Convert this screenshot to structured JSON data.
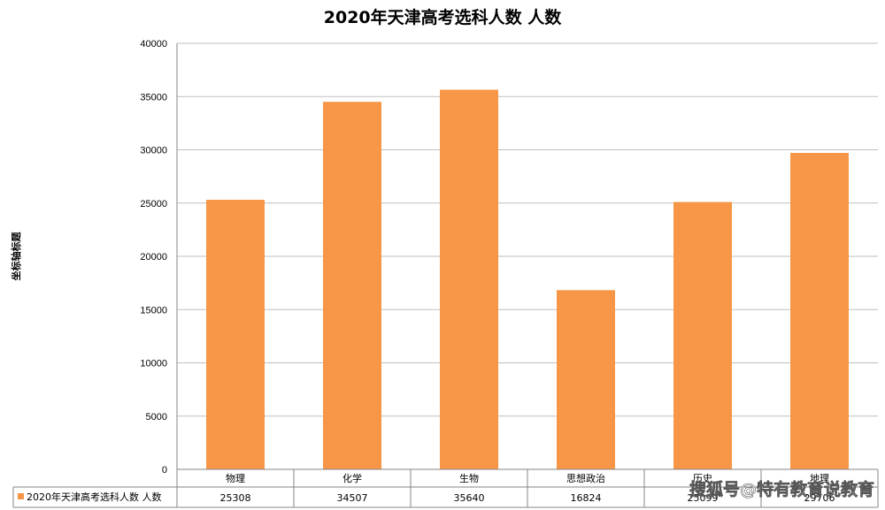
{
  "chart_data": {
    "type": "bar",
    "title": "2020年天津高考选科人数 人数",
    "ylabel": "坐标轴标题",
    "xlabel": "",
    "ylim": [
      0,
      40000
    ],
    "yticks": [
      0,
      5000,
      10000,
      15000,
      20000,
      25000,
      30000,
      35000,
      40000
    ],
    "categories": [
      "物理",
      "化学",
      "生物",
      "思想政治",
      "历史",
      "地理"
    ],
    "series": [
      {
        "name": "2020年天津高考选科人数 人数",
        "values": [
          25308,
          34507,
          35640,
          16824,
          25099,
          29706
        ],
        "color": "#F79646"
      }
    ],
    "table_values": [
      "25308",
      "34507",
      "35640",
      "16824",
      "25099",
      "29706"
    ],
    "grid": true,
    "legend": "data-table"
  },
  "watermark": "搜狐号@特有教育说教育",
  "colors": {
    "bar": "#F79646",
    "grid": "#BFBFBF",
    "axis": "#868686",
    "text": "#000000"
  }
}
